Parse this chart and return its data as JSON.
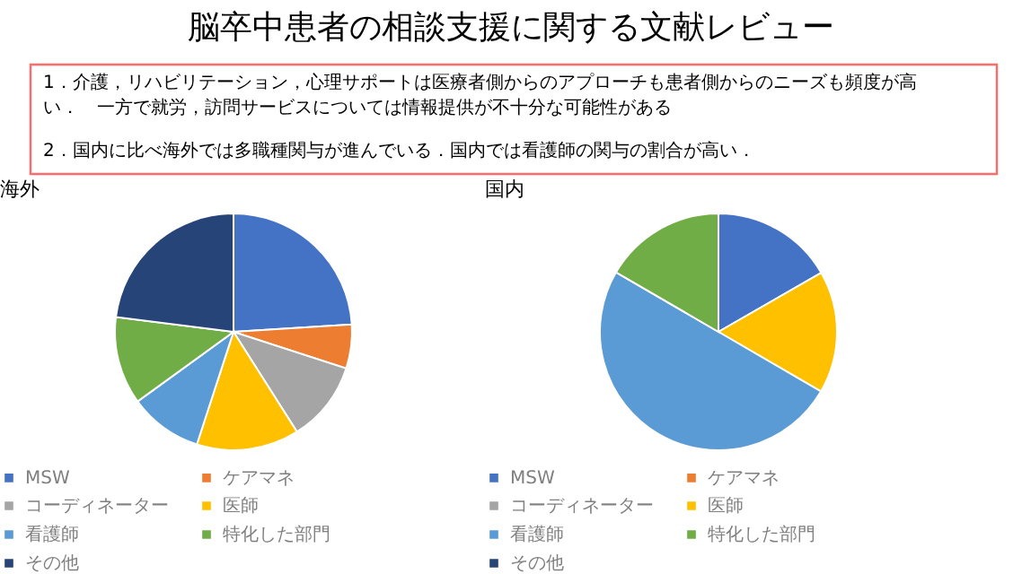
{
  "chart_data": [
    {
      "type": "other",
      "title": "脳卒中患者の相談支援に関する文献レビュー",
      "annotations": [
        "1．介護，リハビリテーション，心理サポートは医療者側からのアプローチも患者側からのニーズも頻度が高い．　一方で就労，訪問サービスについては情報提供が不十分な可能性がある",
        "2．国内に比べ海外では多職種関与が進んでいる．国内では看護師の関与の割合が高い．"
      ]
    },
    {
      "type": "pie",
      "title": "海外",
      "legend": "bottom",
      "categories": [
        "MSW",
        "ケアマネ",
        "コーディネーター",
        "医師",
        "看護師",
        "特化した部門",
        "その他"
      ],
      "values": [
        24,
        6,
        11,
        14,
        10,
        12,
        23
      ],
      "colors": [
        "#4472c4",
        "#ed7d31",
        "#a5a5a5",
        "#ffc000",
        "#5b9bd5",
        "#70ad47",
        "#264478"
      ]
    },
    {
      "type": "pie",
      "title": "国内",
      "legend": "bottom",
      "categories": [
        "MSW",
        "ケアマネ",
        "コーディネーター",
        "医師",
        "看護師",
        "特化した部門",
        "その他"
      ],
      "values": [
        16.7,
        0,
        0,
        16.7,
        50,
        16.6,
        0
      ],
      "colors": [
        "#4472c4",
        "#ed7d31",
        "#a5a5a5",
        "#ffc000",
        "#5b9bd5",
        "#70ad47",
        "#264478"
      ]
    }
  ]
}
